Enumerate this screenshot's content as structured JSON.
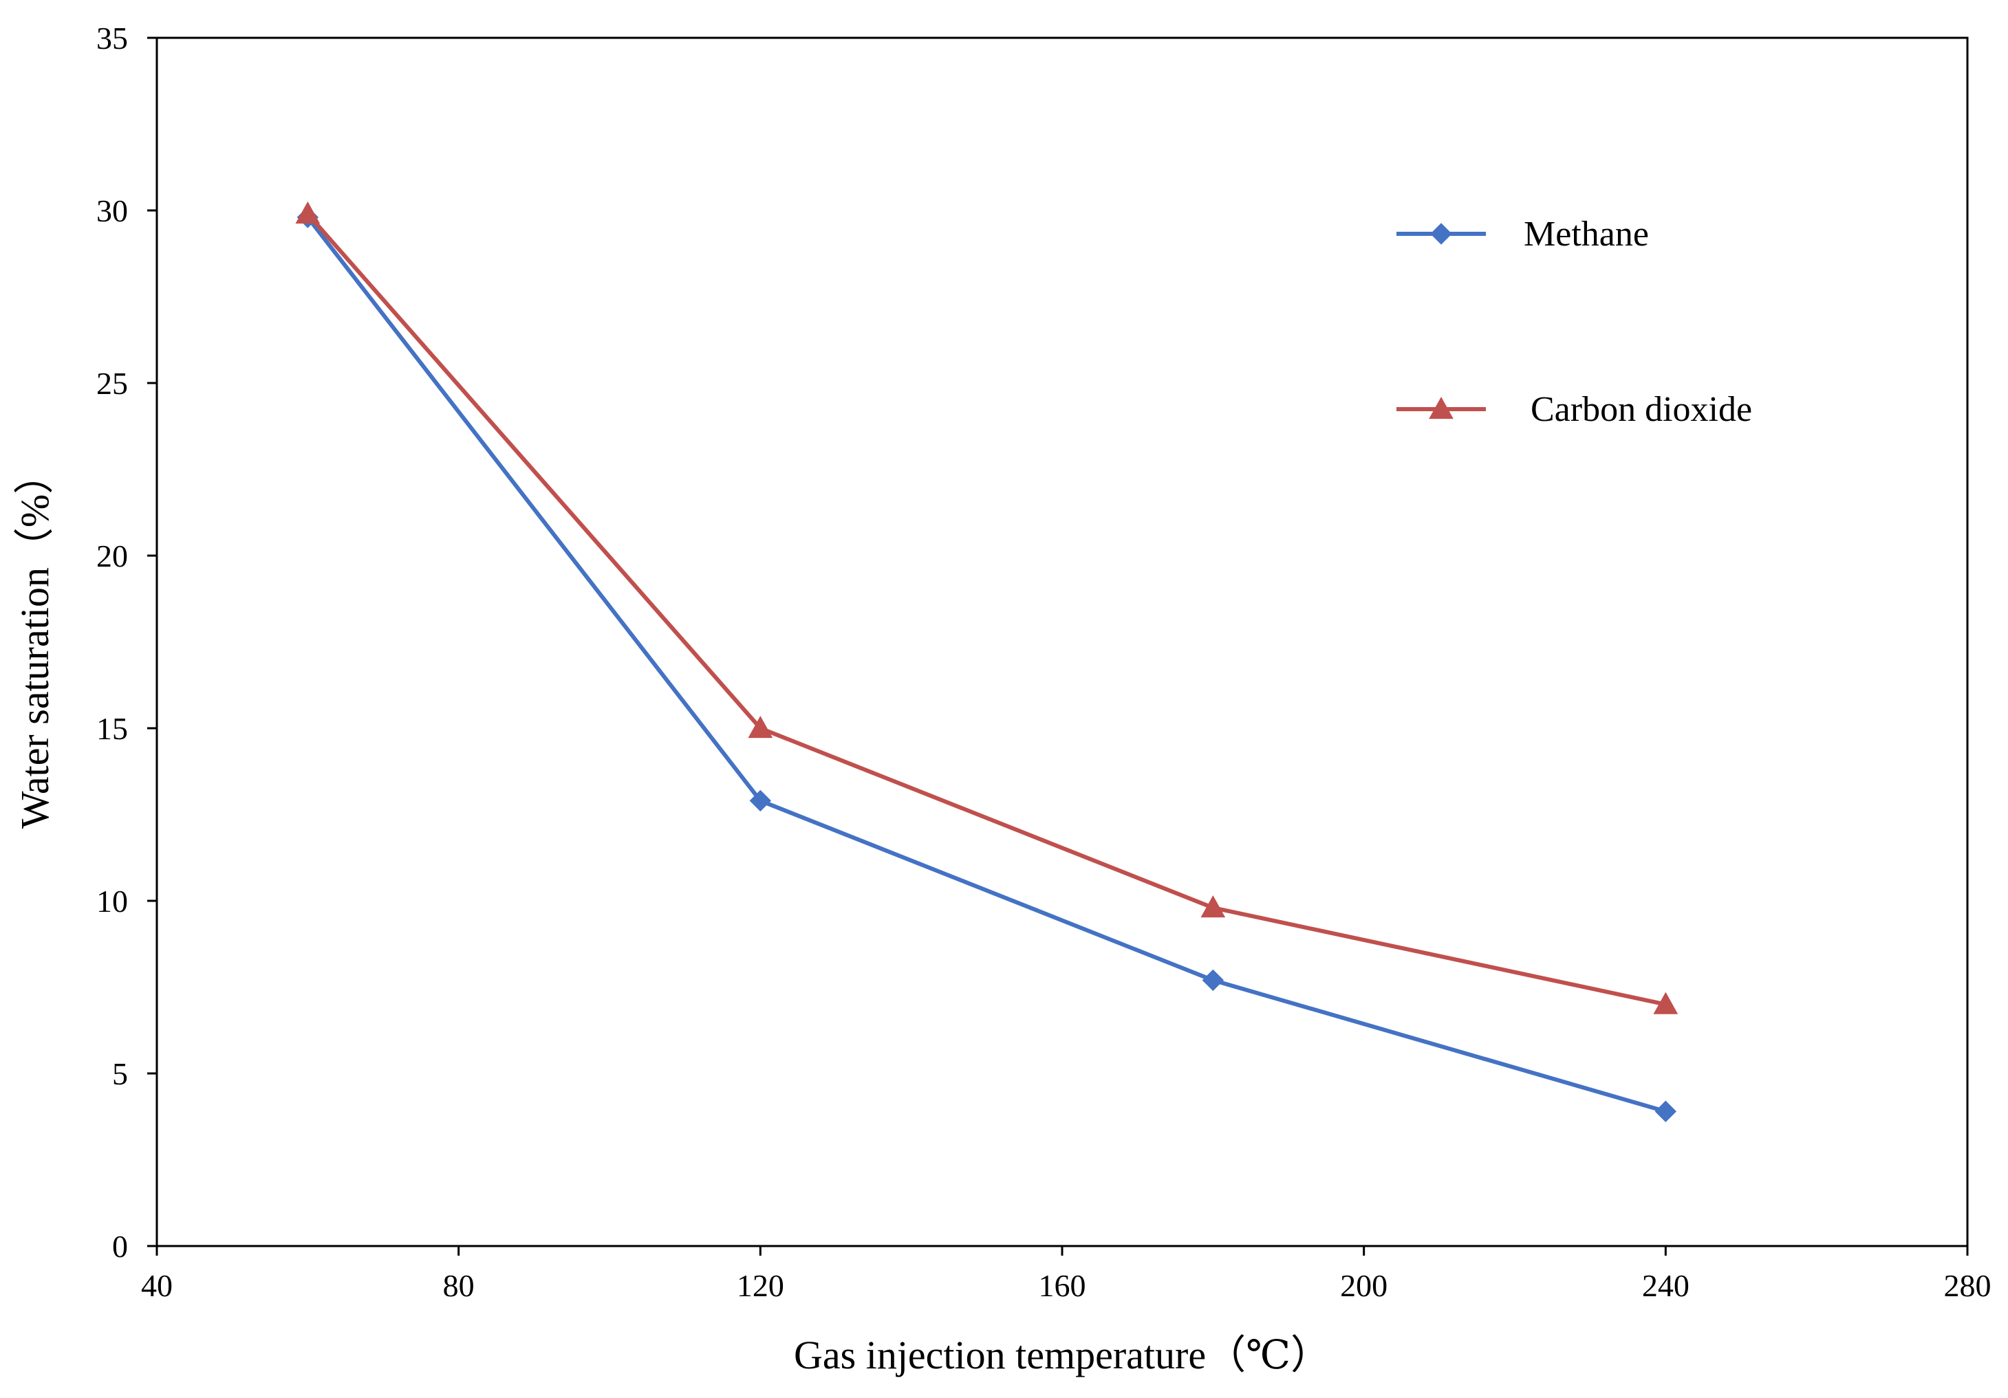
{
  "chart_data": {
    "type": "line",
    "title": "",
    "xlabel": "Gas injection temperature（℃）",
    "ylabel": "Water saturation（%）",
    "xlim": [
      40,
      280
    ],
    "ylim": [
      0,
      35
    ],
    "xticks": [
      40,
      80,
      120,
      160,
      200,
      240,
      280
    ],
    "yticks": [
      0,
      5,
      10,
      15,
      20,
      25,
      30,
      35
    ],
    "grid": false,
    "legend_position": "top-right",
    "series": [
      {
        "name": "Methane",
        "color": "#4472C4",
        "marker": "diamond",
        "x": [
          60,
          120,
          180,
          240
        ],
        "y": [
          29.8,
          12.9,
          7.7,
          3.9
        ]
      },
      {
        "name": "Carbon dioxide",
        "color": "#C0504D",
        "marker": "triangle",
        "x": [
          60,
          120,
          180,
          240
        ],
        "y": [
          29.9,
          15.0,
          9.8,
          7.0
        ]
      }
    ]
  }
}
